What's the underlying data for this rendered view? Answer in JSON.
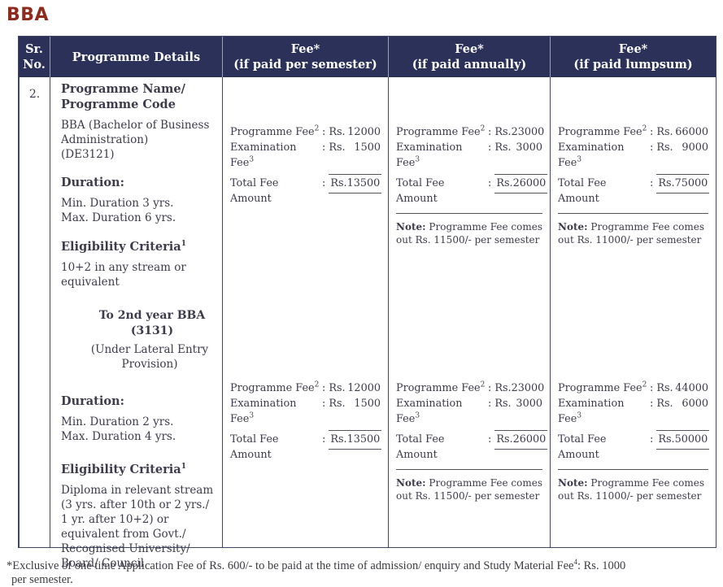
{
  "title": "BBA",
  "colors": {
    "title": "#8e2a1e",
    "header_bg": "#2b3158",
    "header_text": "#ffffff",
    "body_text": "#3c3c4c",
    "border": "#40466a"
  },
  "table": {
    "headers": {
      "sr_no": "Sr.\nNo.",
      "programme_details": "Programme Details",
      "fee_semester": "Fee*\n(if paid per semester)",
      "fee_annual": "Fee*\n(if paid annually)",
      "fee_lumpsum": "Fee*\n(if paid lumpsum)"
    },
    "row": {
      "sr_no": "2.",
      "details": {
        "programme_name_heading": "Programme Name/\nProgramme Code",
        "programme_name_value": "BBA (Bachelor of Business Administration)\n(DE3121)",
        "duration_heading_1": "Duration:",
        "duration_value_1": "Min. Duration 3 yrs.\nMax. Duration 6 yrs.",
        "eligibility_heading_1": "Eligibility Criteria",
        "eligibility_sup_1": "1",
        "eligibility_value_1": "10+2 in any stream or equivalent",
        "lateral_heading": "To 2nd year BBA (3131)",
        "lateral_subheading": "(Under Lateral Entry Provision)",
        "duration_heading_2": "Duration:",
        "duration_value_2": "Min. Duration 2 yrs.\nMax. Duration 4 yrs.",
        "eligibility_heading_2": "Eligibility Criteria",
        "eligibility_sup_2": "1",
        "eligibility_value_2": "Diploma in relevant  stream (3 yrs. after 10th or 2 yrs./ 1 yr. after 10+2) or equivalent from Govt./ Recognised University/ Board/ Council"
      },
      "fee_labels": {
        "programme": "Programme Fee",
        "programme_sup": "2",
        "examination": "Examination Fee",
        "examination_sup": "3",
        "total": "Total Fee Amount",
        "colon": ":",
        "rs": "Rs.",
        "note_label": "Note:"
      },
      "fee_blocks": {
        "semester_top": {
          "programme": "12000",
          "examination": "1500",
          "total": "13500"
        },
        "annual_top": {
          "programme": "23000",
          "examination": "3000",
          "total": "26000",
          "note": "Programme Fee comes out Rs. 11500/- per semester"
        },
        "lumpsum_top": {
          "programme": "66000",
          "examination": "9000",
          "total": "75000",
          "note": "Programme Fee comes out Rs. 11000/- per semester"
        },
        "semester_bottom": {
          "programme": "12000",
          "examination": "1500",
          "total": "13500"
        },
        "annual_bottom": {
          "programme": "23000",
          "examination": "3000",
          "total": "26000",
          "note": "Programme Fee comes out Rs. 11500/- per semester"
        },
        "lumpsum_bottom": {
          "programme": "44000",
          "examination": "6000",
          "total": "50000",
          "note": "Programme Fee comes out Rs. 11000/- per semester"
        }
      }
    }
  },
  "footnote": {
    "before_sup": "*Exclusive of one time Application Fee of Rs. 600/- to be paid at the time of admission/ enquiry and Study Material Fee",
    "sup": "4",
    "after_sup": ": Rs. 1000\nper semester."
  }
}
